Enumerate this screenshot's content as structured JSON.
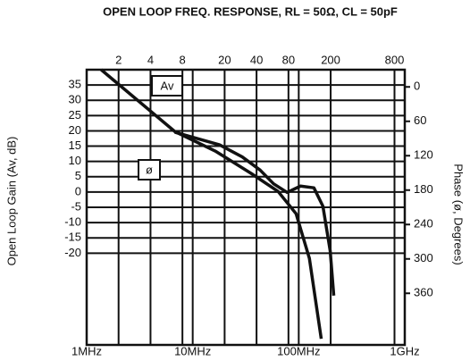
{
  "chart_data": {
    "type": "line",
    "title": "OPEN LOOP FREQ. RESPONSE, RL = 50Ω, CL = 50pF",
    "ylabel": "Open Loop Gain (Av, dB)",
    "y2label": "Phase (ø, Degrees)",
    "xscale": "log",
    "xlim": [
      1000000,
      1000000000
    ],
    "xticks": [
      {
        "value": 1000000,
        "label": "1MHz"
      },
      {
        "value": 10000000,
        "label": "10MHz"
      },
      {
        "value": 100000000,
        "label": "100MHz"
      },
      {
        "value": 1000000000,
        "label": "1GHz"
      }
    ],
    "x2ticks": [
      {
        "value": 2000000,
        "label": "2"
      },
      {
        "value": 4000000,
        "label": "4"
      },
      {
        "value": 8000000,
        "label": "8"
      },
      {
        "value": 20000000,
        "label": "20"
      },
      {
        "value": 40000000,
        "label": "40"
      },
      {
        "value": 80000000,
        "label": "80"
      },
      {
        "value": 200000000,
        "label": "200"
      },
      {
        "value": 800000000,
        "label": "800"
      }
    ],
    "ylim": [
      -50,
      40
    ],
    "yticks": [
      35,
      30,
      25,
      20,
      15,
      10,
      5,
      0,
      -5,
      -10,
      -15,
      -20
    ],
    "y2lim": [
      450,
      -30
    ],
    "y2ticks": [
      0,
      60,
      120,
      180,
      240,
      300,
      360
    ],
    "grid": true,
    "series": [
      {
        "name": "Av",
        "color": "#111111",
        "x": [
          1370000,
          6770000,
          16300000,
          35500000,
          63800000,
          94400000,
          126000000,
          163000000
        ],
        "values": [
          40,
          19.8,
          13.4,
          6.1,
          0.2,
          -7.1,
          -21.7,
          -48
        ]
      },
      {
        "name": "ø",
        "color": "#111111",
        "axis": "y2",
        "x": [
          6770000,
          17900000,
          29300000,
          43200000,
          57900000,
          77600000,
          104000000,
          139000000,
          169000000,
          198000000,
          214000000
        ],
        "values": [
          79,
          101,
          122,
          145,
          169,
          184,
          173,
          176,
          208,
          286,
          364
        ]
      }
    ]
  }
}
